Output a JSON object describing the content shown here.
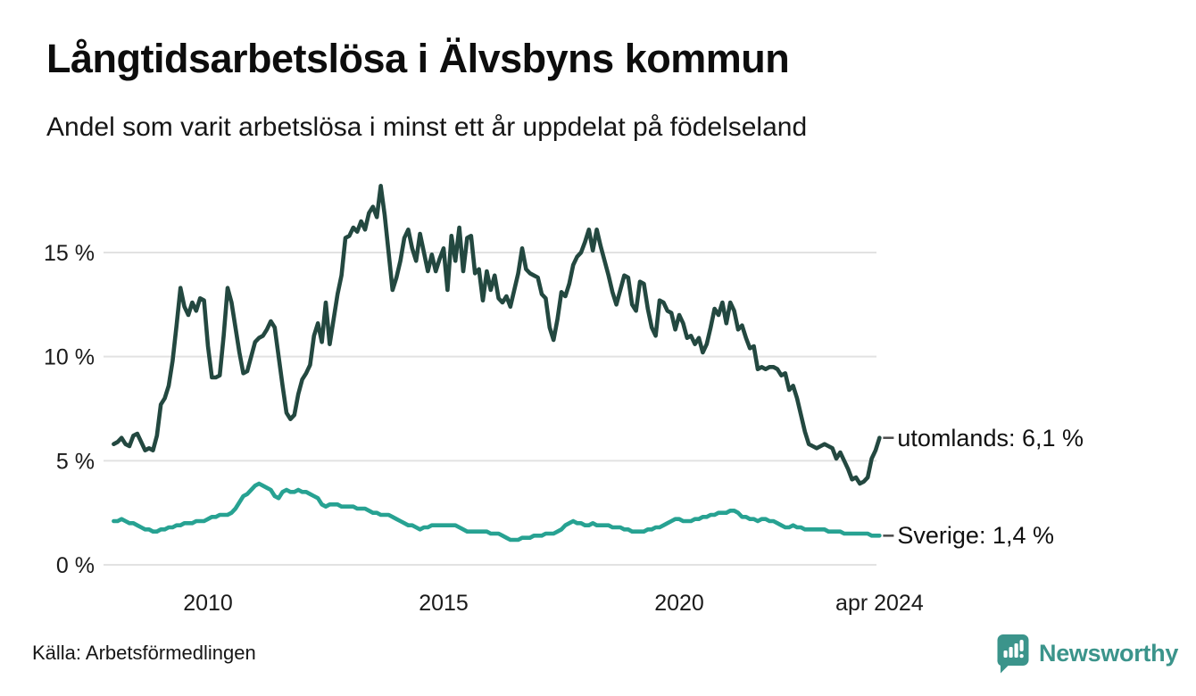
{
  "header": {
    "title": "Långtidsarbetslösa i Älvsbyns kommun",
    "subtitle": "Andel som varit arbetslösa i minst ett år uppdelat på födelseland"
  },
  "footer": {
    "source": "Källa: Arbetsförmedlingen",
    "logo_text": "Newsworthy"
  },
  "colors": {
    "utomlands_line": "#234840",
    "sverige_line": "#27a292",
    "gridline": "#e2e2e2",
    "annotation_dash": "#4a4a4a",
    "logo_teal": "#3b948b"
  },
  "chart_data": {
    "type": "line",
    "title": "Långtidsarbetslösa i Älvsbyns kommun",
    "subtitle": "Andel som varit arbetslösa i minst ett år uppdelat på födelseland",
    "frequency": "monthly",
    "x_start": "2008-01",
    "x_end": "2024-04",
    "x_start_year": 2008,
    "x_tick_labels": [
      "2010",
      "2015",
      "2020",
      "apr 2024"
    ],
    "x_tick_years": [
      2010,
      2015,
      2020,
      2024.25
    ],
    "y_ticks": [
      0,
      5,
      10,
      15
    ],
    "y_tick_labels": [
      "0 %",
      "5 %",
      "10 %",
      "15 %"
    ],
    "ylim": [
      0,
      18.5
    ],
    "grid": true,
    "legend_position": "end-of-line-annotations",
    "series": [
      {
        "name": "utomlands",
        "label": "utomlands: 6,1 %",
        "last_value": 6.1,
        "color": "#234840",
        "values": [
          5.8,
          5.9,
          6.1,
          5.8,
          5.7,
          6.2,
          6.3,
          5.9,
          5.5,
          5.6,
          5.5,
          6.2,
          7.7,
          8.0,
          8.6,
          9.8,
          11.5,
          13.3,
          12.4,
          12.0,
          12.6,
          12.2,
          12.8,
          12.7,
          10.5,
          9.0,
          9.0,
          9.1,
          11.0,
          13.3,
          12.6,
          11.4,
          10.2,
          9.2,
          9.3,
          10.0,
          10.7,
          10.9,
          11.0,
          11.3,
          11.7,
          11.4,
          10.0,
          8.6,
          7.3,
          7.0,
          7.2,
          8.2,
          8.9,
          9.2,
          9.6,
          11.0,
          11.6,
          10.7,
          12.6,
          10.6,
          11.8,
          13.0,
          13.9,
          15.7,
          15.8,
          16.2,
          16.0,
          16.5,
          16.1,
          16.9,
          17.2,
          16.7,
          18.2,
          16.8,
          15.0,
          13.2,
          13.8,
          14.6,
          15.7,
          16.1,
          15.2,
          14.6,
          15.9,
          15.0,
          14.1,
          14.9,
          14.1,
          14.7,
          15.2,
          13.2,
          15.8,
          14.6,
          16.2,
          14.1,
          15.7,
          15.8,
          14.0,
          14.2,
          12.7,
          14.1,
          13.2,
          13.9,
          12.8,
          12.6,
          12.9,
          12.4,
          13.2,
          14.0,
          15.2,
          14.2,
          14.0,
          13.9,
          13.8,
          13.0,
          12.8,
          11.4,
          10.8,
          11.8,
          13.1,
          12.9,
          13.5,
          14.4,
          14.8,
          15.0,
          15.5,
          16.1,
          15.1,
          16.1,
          15.3,
          14.6,
          13.9,
          13.1,
          12.5,
          13.2,
          13.9,
          13.8,
          12.5,
          12.2,
          13.6,
          13.5,
          12.3,
          11.4,
          11.0,
          12.7,
          12.6,
          12.2,
          12.1,
          11.3,
          12.0,
          11.6,
          10.9,
          11.0,
          10.6,
          10.9,
          10.2,
          10.6,
          11.4,
          12.3,
          12.0,
          12.6,
          11.6,
          12.6,
          12.2,
          11.3,
          11.5,
          10.9,
          10.4,
          10.5,
          9.4,
          9.5,
          9.4,
          9.5,
          9.5,
          9.4,
          9.1,
          9.2,
          8.4,
          8.6,
          8.0,
          7.2,
          6.4,
          5.8,
          5.7,
          5.6,
          5.7,
          5.8,
          5.7,
          5.6,
          5.1,
          5.4,
          5.0,
          4.6,
          4.1,
          4.2,
          3.9,
          4.0,
          4.2,
          5.1,
          5.5,
          6.1
        ]
      },
      {
        "name": "Sverige",
        "label": "Sverige: 1,4 %",
        "last_value": 1.4,
        "color": "#27a292",
        "values": [
          2.1,
          2.1,
          2.2,
          2.1,
          2.0,
          2.0,
          1.9,
          1.8,
          1.7,
          1.7,
          1.6,
          1.6,
          1.7,
          1.7,
          1.8,
          1.8,
          1.9,
          1.9,
          2.0,
          2.0,
          2.0,
          2.1,
          2.1,
          2.1,
          2.2,
          2.3,
          2.3,
          2.4,
          2.4,
          2.4,
          2.5,
          2.7,
          3.0,
          3.3,
          3.4,
          3.6,
          3.8,
          3.9,
          3.8,
          3.7,
          3.6,
          3.3,
          3.2,
          3.5,
          3.6,
          3.5,
          3.5,
          3.6,
          3.5,
          3.5,
          3.4,
          3.3,
          3.2,
          2.9,
          2.8,
          2.9,
          2.9,
          2.9,
          2.8,
          2.8,
          2.8,
          2.8,
          2.7,
          2.7,
          2.7,
          2.6,
          2.5,
          2.5,
          2.4,
          2.4,
          2.4,
          2.3,
          2.2,
          2.1,
          2.0,
          1.9,
          1.9,
          1.8,
          1.7,
          1.8,
          1.8,
          1.9,
          1.9,
          1.9,
          1.9,
          1.9,
          1.9,
          1.9,
          1.8,
          1.7,
          1.6,
          1.6,
          1.6,
          1.6,
          1.6,
          1.6,
          1.5,
          1.5,
          1.5,
          1.4,
          1.3,
          1.2,
          1.2,
          1.2,
          1.3,
          1.3,
          1.3,
          1.4,
          1.4,
          1.4,
          1.5,
          1.5,
          1.5,
          1.6,
          1.7,
          1.9,
          2.0,
          2.1,
          2.0,
          2.0,
          1.9,
          1.9,
          2.0,
          1.9,
          1.9,
          1.9,
          1.9,
          1.8,
          1.8,
          1.8,
          1.7,
          1.7,
          1.6,
          1.6,
          1.6,
          1.6,
          1.7,
          1.7,
          1.8,
          1.8,
          1.9,
          2.0,
          2.1,
          2.2,
          2.2,
          2.1,
          2.1,
          2.1,
          2.2,
          2.2,
          2.3,
          2.3,
          2.4,
          2.4,
          2.5,
          2.5,
          2.5,
          2.6,
          2.6,
          2.5,
          2.3,
          2.3,
          2.2,
          2.2,
          2.1,
          2.2,
          2.2,
          2.1,
          2.1,
          2.0,
          1.9,
          1.8,
          1.8,
          1.9,
          1.8,
          1.8,
          1.7,
          1.7,
          1.7,
          1.7,
          1.7,
          1.7,
          1.6,
          1.6,
          1.6,
          1.6,
          1.5,
          1.5,
          1.5,
          1.5,
          1.5,
          1.5,
          1.5,
          1.4,
          1.4,
          1.4
        ]
      }
    ]
  }
}
